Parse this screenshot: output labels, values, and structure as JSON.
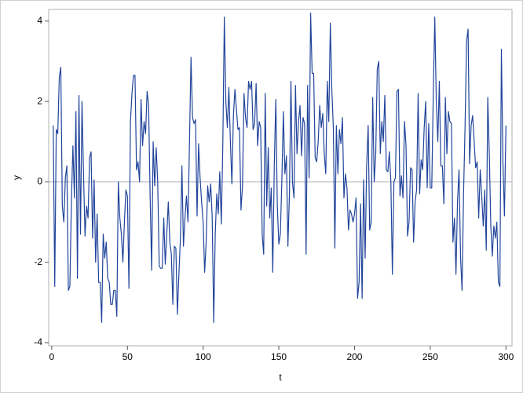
{
  "chart_data": {
    "type": "line",
    "x_label": "t",
    "y_label": "y",
    "x": [
      1,
      2,
      3,
      4,
      5,
      6,
      7,
      8,
      9,
      10,
      11,
      12,
      13,
      14,
      15,
      16,
      17,
      18,
      19,
      20,
      21,
      22,
      23,
      24,
      25,
      26,
      27,
      28,
      29,
      30,
      31,
      32,
      33,
      34,
      35,
      36,
      37,
      38,
      39,
      40,
      41,
      42,
      43,
      44,
      45,
      46,
      47,
      48,
      49,
      50,
      51,
      52,
      53,
      54,
      55,
      56,
      57,
      58,
      59,
      60,
      61,
      62,
      63,
      64,
      65,
      66,
      67,
      68,
      69,
      70,
      71,
      72,
      73,
      74,
      75,
      76,
      77,
      78,
      79,
      80,
      81,
      82,
      83,
      84,
      85,
      86,
      87,
      88,
      89,
      90,
      91,
      92,
      93,
      94,
      95,
      96,
      97,
      98,
      99,
      100,
      101,
      102,
      103,
      104,
      105,
      106,
      107,
      108,
      109,
      110,
      111,
      112,
      113,
      114,
      115,
      116,
      117,
      118,
      119,
      120,
      121,
      122,
      123,
      124,
      125,
      126,
      127,
      128,
      129,
      130,
      131,
      132,
      133,
      134,
      135,
      136,
      137,
      138,
      139,
      140,
      141,
      142,
      143,
      144,
      145,
      146,
      147,
      148,
      149,
      150,
      151,
      152,
      153,
      154,
      155,
      156,
      157,
      158,
      159,
      160,
      161,
      162,
      163,
      164,
      165,
      166,
      167,
      168,
      169,
      170,
      171,
      172,
      173,
      174,
      175,
      176,
      177,
      178,
      179,
      180,
      181,
      182,
      183,
      184,
      185,
      186,
      187,
      188,
      189,
      190,
      191,
      192,
      193,
      194,
      195,
      196,
      197,
      198,
      199,
      200,
      201,
      202,
      203,
      204,
      205,
      206,
      207,
      208,
      209,
      210,
      211,
      212,
      213,
      214,
      215,
      216,
      217,
      218,
      219,
      220,
      221,
      222,
      223,
      224,
      225,
      226,
      227,
      228,
      229,
      230,
      231,
      232,
      233,
      234,
      235,
      236,
      237,
      238,
      239,
      240,
      241,
      242,
      243,
      244,
      245,
      246,
      247,
      248,
      249,
      250,
      251,
      252,
      253,
      254,
      255,
      256,
      257,
      258,
      259,
      260,
      261,
      262,
      263,
      264,
      265,
      266,
      267,
      268,
      269,
      270,
      271,
      272,
      273,
      274,
      275,
      276,
      277,
      278,
      279,
      280,
      281,
      282,
      283,
      284,
      285,
      286,
      287,
      288,
      289,
      290,
      291,
      292,
      293,
      294,
      295,
      296,
      297,
      298,
      299,
      300
    ],
    "series": [
      {
        "color": "#21449b",
        "values": [
          1.4,
          -2.6,
          1.3,
          1.2,
          2.6,
          2.85,
          -0.6,
          -1.0,
          0.1,
          0.4,
          -2.7,
          -2.6,
          -0.5,
          0.9,
          -0.4,
          1.75,
          -2.4,
          2.15,
          -1.3,
          2.0,
          0.2,
          -1.35,
          -0.6,
          -0.9,
          0.6,
          0.75,
          -1.4,
          0.05,
          -2.0,
          -0.8,
          -2.5,
          -2.5,
          -3.5,
          -1.3,
          -1.9,
          -1.5,
          -2.4,
          -2.5,
          -3.05,
          -3.05,
          -2.7,
          -2.7,
          -3.35,
          0.0,
          -0.9,
          -1.3,
          -2.0,
          -1.0,
          -0.2,
          -0.35,
          -2.65,
          1.5,
          2.2,
          2.65,
          2.65,
          0.3,
          0.5,
          0.0,
          2.05,
          0.9,
          1.5,
          1.2,
          2.25,
          1.9,
          -0.35,
          -2.2,
          1.0,
          -0.1,
          0.85,
          0.0,
          -2.1,
          -2.15,
          -2.15,
          -0.9,
          -2.05,
          -1.3,
          -0.5,
          -1.5,
          -1.8,
          -3.05,
          -1.6,
          -1.65,
          -3.3,
          -2.3,
          -1.4,
          0.4,
          -1.6,
          -0.9,
          -0.35,
          -1.0,
          1.0,
          3.1,
          1.6,
          1.45,
          1.55,
          -0.85,
          0.95,
          0.1,
          -0.5,
          -1.0,
          -2.25,
          -1.5,
          -0.1,
          -0.5,
          -0.05,
          -0.9,
          -3.5,
          -1.3,
          -0.3,
          -0.8,
          0.25,
          -1.05,
          0.9,
          4.1,
          2.0,
          1.35,
          2.35,
          1.0,
          -0.05,
          1.65,
          2.3,
          1.8,
          1.3,
          1.35,
          -0.7,
          -0.1,
          2.2,
          1.6,
          1.35,
          2.5,
          2.3,
          2.5,
          1.3,
          1.45,
          2.45,
          0.9,
          1.5,
          1.35,
          -1.3,
          -1.8,
          2.2,
          -0.6,
          0.85,
          -0.9,
          -0.15,
          -2.25,
          0.4,
          2.05,
          -0.6,
          -1.55,
          -1.3,
          0.05,
          1.75,
          0.2,
          0.65,
          -1.6,
          -0.3,
          2.5,
          0.0,
          -0.4,
          2.4,
          0.7,
          1.5,
          1.9,
          0.65,
          1.6,
          1.45,
          -1.8,
          2.4,
          0.1,
          4.2,
          2.7,
          2.7,
          0.6,
          0.5,
          1.0,
          1.9,
          1.35,
          1.7,
          0.7,
          0.2,
          2.5,
          1.5,
          3.95,
          2.3,
          1.35,
          -1.65,
          1.4,
          0.2,
          1.3,
          0.95,
          1.6,
          -0.4,
          0.2,
          -0.15,
          -1.2,
          -0.7,
          -0.8,
          -1.0,
          -0.8,
          -0.4,
          -2.9,
          -2.5,
          -0.55,
          -2.9,
          0.05,
          -1.9,
          0.4,
          1.4,
          -1.2,
          -1.0,
          2.1,
          0.0,
          0.7,
          2.8,
          3.0,
          0.7,
          1.5,
          1.0,
          2.15,
          0.3,
          0.25,
          0.75,
          0.0,
          -2.3,
          0.0,
          0.1,
          2.25,
          2.3,
          -0.35,
          0.15,
          -0.4,
          1.5,
          0.9,
          -1.35,
          -1.0,
          0.35,
          0.3,
          -1.5,
          -0.5,
          -0.2,
          2.2,
          -0.3,
          0.55,
          0.3,
          1.35,
          2.0,
          -0.15,
          1.45,
          -0.15,
          -0.15,
          2.2,
          4.1,
          2.0,
          1.0,
          2.5,
          0.4,
          0.4,
          -0.55,
          2.1,
          0.7,
          1.75,
          1.5,
          1.45,
          -1.5,
          -0.9,
          -2.3,
          -0.5,
          0.3,
          -1.85,
          -2.7,
          -0.3,
          1.4,
          3.5,
          3.8,
          0.45,
          1.4,
          1.65,
          1.0,
          0.35,
          0.5,
          -0.9,
          0.3,
          -0.35,
          -1.1,
          -0.2,
          -1.7,
          2.1,
          0.7,
          -1.1,
          -1.85,
          -1.1,
          -1.4,
          -1.0,
          -2.5,
          -2.6,
          3.3,
          0.5,
          -0.85,
          1.4
        ]
      }
    ],
    "xlim": [
      -2,
      304
    ],
    "ylim": [
      -4.08,
      4.29
    ],
    "xticks": [
      0,
      50,
      100,
      150,
      200,
      250,
      300
    ],
    "yticks": [
      -4,
      -2,
      0,
      2,
      4
    ],
    "reference_line": 0
  }
}
